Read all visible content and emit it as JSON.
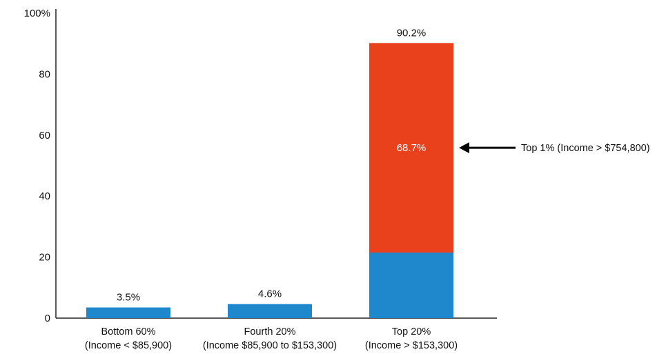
{
  "chart_data": {
    "type": "bar",
    "stacked": true,
    "categories": [
      [
        "Bottom 60%",
        "(Income < $85,900)"
      ],
      [
        "Fourth 20%",
        "(Income $85,900 to $153,300)"
      ],
      [
        "Top 20%",
        "(Income > $153,300)"
      ]
    ],
    "totals": [
      3.5,
      4.6,
      90.2
    ],
    "total_labels": [
      "3.5%",
      "4.6%",
      "90.2%"
    ],
    "series": [
      {
        "values": [
          3.5,
          4.6,
          21.5
        ],
        "color": "#1f88cc"
      },
      {
        "values": [
          0,
          0,
          68.7
        ],
        "color": "#e8411c"
      }
    ],
    "inner_label": {
      "bar_index": 2,
      "series_index": 1,
      "text": "68.7%"
    },
    "annotation": {
      "bar_index": 2,
      "text": "Top 1% (Income > $754,800)",
      "arrow": "left"
    },
    "ylim": [
      0,
      100
    ],
    "yticks": [
      0,
      20,
      40,
      60,
      80,
      100
    ],
    "ytick_labels": [
      "0",
      "20",
      "40",
      "60",
      "80",
      "100%"
    ],
    "grid": false,
    "legend": "none"
  }
}
